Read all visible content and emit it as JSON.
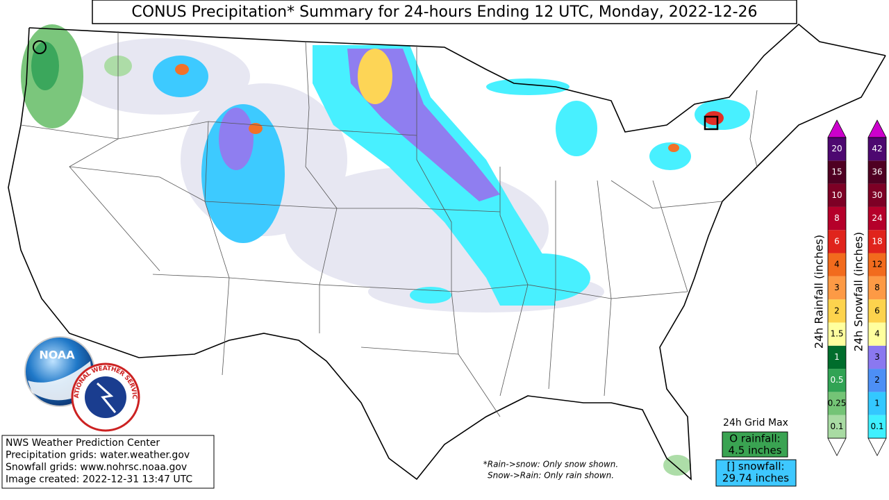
{
  "title": "CONUS Precipitation* Summary for 24-hours Ending 12 UTC, Monday, 2022-12-26",
  "legend": {
    "rainfall": {
      "label": "24h Rainfall (inches)",
      "levels": [
        "0.1",
        "0.25",
        "0.5",
        "1",
        "1.5",
        "2",
        "3",
        "4",
        "6",
        "8",
        "10",
        "15",
        "20"
      ],
      "colors": [
        "#a9dba3",
        "#74c476",
        "#31a354",
        "#006d2c",
        "#ffff9e",
        "#fdd34d",
        "#fd9a45",
        "#f26b1d",
        "#e0241c",
        "#b5002a",
        "#7d0025",
        "#4f0022",
        "#4d0870"
      ]
    },
    "snowfall": {
      "label": "24h Snowfall (inches)",
      "levels": [
        "0.1",
        "1",
        "2",
        "3",
        "4",
        "6",
        "8",
        "12",
        "18",
        "24",
        "30",
        "36",
        "42"
      ],
      "colors": [
        "#3ff0ff",
        "#33c8ff",
        "#4d8ff5",
        "#8a78f0",
        "#ffff9e",
        "#fdd34d",
        "#fd9a45",
        "#f26b1d",
        "#e0241c",
        "#b5002a",
        "#7d0025",
        "#4f0022",
        "#4d0870"
      ]
    }
  },
  "info": [
    "NWS Weather Prediction Center",
    "Precipitation grids: water.weather.gov",
    "Snowfall grids: www.nohrsc.noaa.gov",
    "Image created: 2022-12-31 13:47 UTC"
  ],
  "note": [
    "*Rain->snow: Only snow shown.",
    "Snow->Rain: Only rain shown."
  ],
  "grid_max": {
    "title": "24h Grid Max",
    "rainfall": [
      "O rainfall:",
      "4.5 inches"
    ],
    "snowfall": [
      "[] snowfall:",
      "29.74 inches"
    ]
  },
  "logos": {
    "noaa": "NOAA",
    "nws": "NATIONAL WEATHER SERVICE"
  }
}
